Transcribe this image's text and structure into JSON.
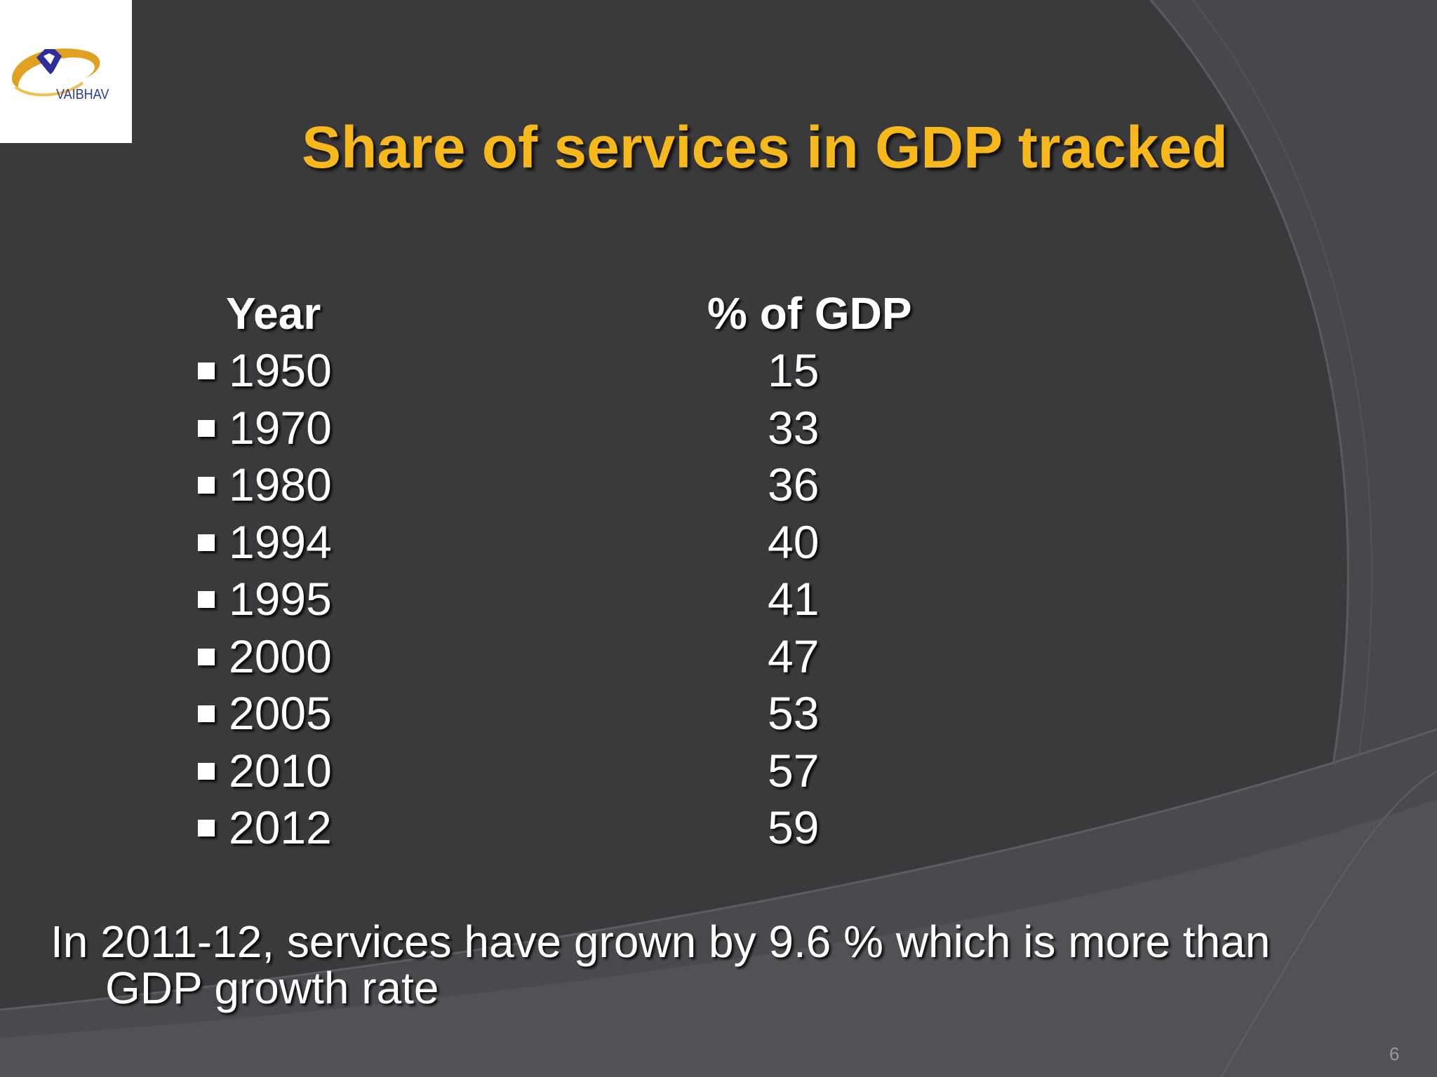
{
  "logo": {
    "text": "VAIBHAV",
    "colors": {
      "gem": "#2d2f9a",
      "swoosh": "#e0a020"
    },
    "icon": "diamond-heart-logo-icon"
  },
  "slide": {
    "title": "Share of services in GDP tracked",
    "title_color": "#f6b81b",
    "background_color": "#3a3a3d",
    "table": {
      "header_year": "Year",
      "header_value": "% of GDP",
      "rows": [
        {
          "year": "1950",
          "value": "15"
        },
        {
          "year": "1970",
          "value": "33"
        },
        {
          "year": "1980",
          "value": "36"
        },
        {
          "year": "1994",
          "value": "40"
        },
        {
          "year": "1995",
          "value": "41"
        },
        {
          "year": "2000",
          "value": "47"
        },
        {
          "year": "2005",
          "value": "53"
        },
        {
          "year": "2010",
          "value": "57"
        },
        {
          "year": "2012",
          "value": "59"
        }
      ]
    },
    "footnote_line1": "In 2011-12,  services have grown by 9.6 % which is more than",
    "footnote_line2": "GDP growth rate",
    "page_number": "6"
  }
}
